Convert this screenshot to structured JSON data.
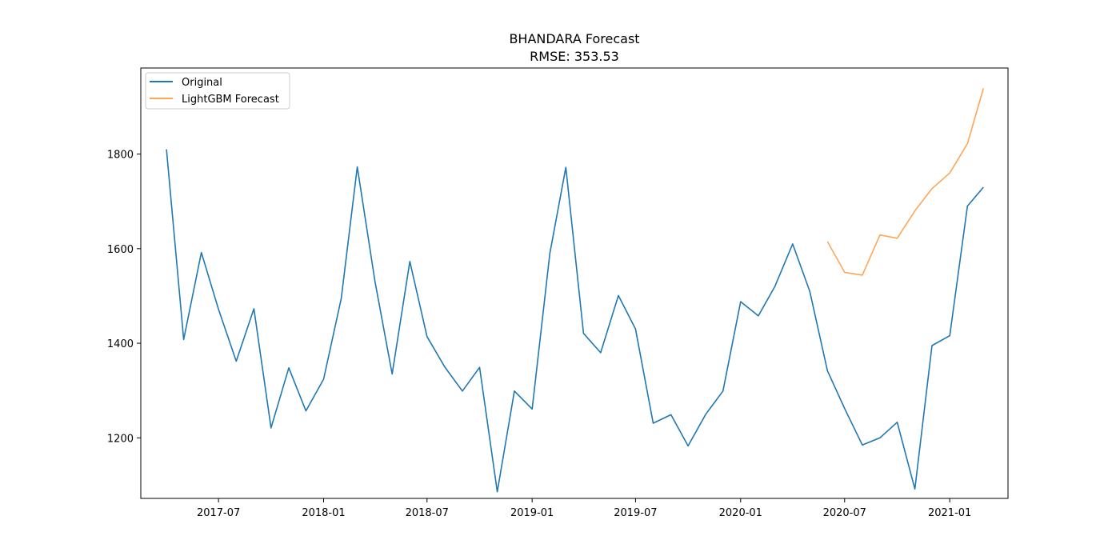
{
  "chart_data": {
    "type": "line",
    "title": "BHANDARA Forecast",
    "subtitle": "RMSE: 353.53",
    "xlabel": "",
    "ylabel": "",
    "x_tick_labels": [
      "2017-07",
      "2018-01",
      "2018-07",
      "2019-01",
      "2019-07",
      "2020-01",
      "2020-07",
      "2021-01"
    ],
    "y_ticks": [
      1200,
      1400,
      1600,
      1800
    ],
    "ylim": [
      1072,
      1982
    ],
    "xlim": [
      "2017-02-15",
      "2021-04-13"
    ],
    "grid": false,
    "legend_position": "top-left",
    "series": [
      {
        "name": "Original",
        "color": "#1f77b4",
        "x": [
          "2017-04-01",
          "2017-05-01",
          "2017-06-01",
          "2017-07-01",
          "2017-08-01",
          "2017-09-01",
          "2017-10-01",
          "2017-11-01",
          "2017-12-01",
          "2018-01-01",
          "2018-02-01",
          "2018-03-01",
          "2018-04-01",
          "2018-05-01",
          "2018-06-01",
          "2018-07-01",
          "2018-08-01",
          "2018-09-01",
          "2018-10-01",
          "2018-11-01",
          "2018-12-01",
          "2019-01-01",
          "2019-02-01",
          "2019-03-01",
          "2019-04-01",
          "2019-05-01",
          "2019-06-01",
          "2019-07-01",
          "2019-08-01",
          "2019-09-01",
          "2019-10-01",
          "2019-11-01",
          "2019-12-01",
          "2020-01-01",
          "2020-02-01",
          "2020-03-01",
          "2020-04-01",
          "2020-05-01",
          "2020-06-01",
          "2020-07-01",
          "2020-08-01",
          "2020-09-01",
          "2020-10-01",
          "2020-11-01",
          "2020-12-01",
          "2021-01-01",
          "2021-02-01",
          "2021-03-01"
        ],
        "values": [
          1810,
          1408,
          1592,
          1472,
          1362,
          1473,
          1221,
          1348,
          1257,
          1324,
          1495,
          1773,
          1530,
          1335,
          1573,
          1414,
          1350,
          1299,
          1349,
          1086,
          1299,
          1261,
          1590,
          1772,
          1421,
          1380,
          1501,
          1430,
          1231,
          1249,
          1183,
          1250,
          1299,
          1488,
          1458,
          1520,
          1610,
          1510,
          1342,
          1262,
          1185,
          1200,
          1233,
          1092,
          1395,
          1416,
          1690,
          1730
        ]
      },
      {
        "name": "LightGBM Forecast",
        "color": "#ff7f0e",
        "x": [
          "2020-06-01",
          "2020-07-01",
          "2020-08-01",
          "2020-09-01",
          "2020-10-01",
          "2020-11-01",
          "2020-12-01",
          "2021-01-01",
          "2021-02-01",
          "2021-03-01"
        ],
        "values": [
          1615,
          1550,
          1544,
          1629,
          1622,
          1680,
          1727,
          1760,
          1822,
          1939
        ]
      }
    ]
  }
}
